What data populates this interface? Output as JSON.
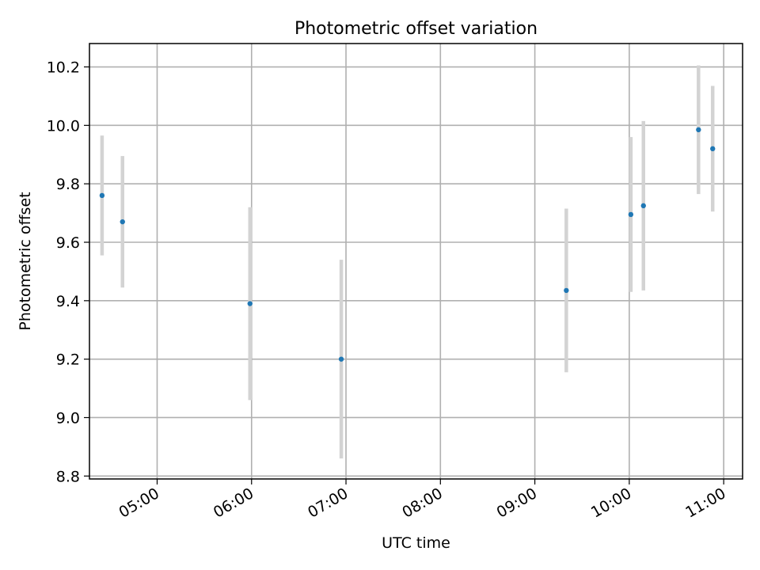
{
  "chart_data": {
    "type": "scatter",
    "title": "Photometric offset variation",
    "xlabel": "UTC time",
    "ylabel": "Photometric offset",
    "xlim": [
      "04:17",
      "11:12"
    ],
    "ylim": [
      8.79,
      10.28
    ],
    "xticks": [
      "05:00",
      "06:00",
      "07:00",
      "08:00",
      "09:00",
      "10:00",
      "11:00"
    ],
    "yticks": [
      8.8,
      9.0,
      9.2,
      9.4,
      9.6,
      9.8,
      10.0,
      10.2
    ],
    "grid": true,
    "points": [
      {
        "x": "04:25",
        "y": 9.76,
        "err": 0.205
      },
      {
        "x": "04:38",
        "y": 9.67,
        "err": 0.225
      },
      {
        "x": "05:59",
        "y": 9.39,
        "err": 0.33
      },
      {
        "x": "06:57",
        "y": 9.2,
        "err": 0.34
      },
      {
        "x": "09:20",
        "y": 9.435,
        "err": 0.28
      },
      {
        "x": "10:01",
        "y": 9.695,
        "err": 0.265
      },
      {
        "x": "10:09",
        "y": 9.725,
        "err": 0.29
      },
      {
        "x": "10:44",
        "y": 9.985,
        "err": 0.22
      },
      {
        "x": "10:53",
        "y": 9.92,
        "err": 0.215
      }
    ],
    "colors": {
      "marker": "#1f77b4",
      "errorbar": "#d3d3d3",
      "grid": "#b0b0b0"
    }
  }
}
